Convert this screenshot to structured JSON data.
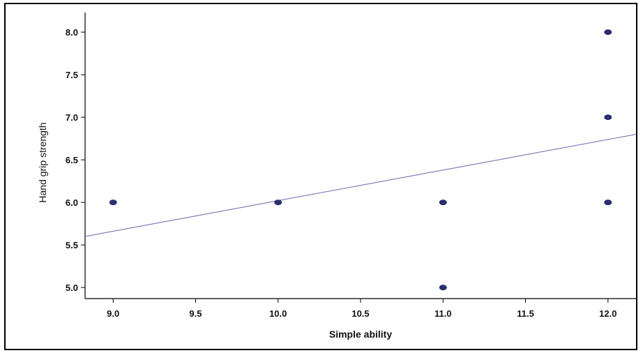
{
  "chart_data": {
    "type": "scatter",
    "title": "",
    "xlabel": "Simple ability",
    "ylabel": "Hand grip strength",
    "xlim": [
      8.83,
      12.17
    ],
    "ylim": [
      4.87,
      8.23
    ],
    "x_ticks": [
      "9.0",
      "9.5",
      "10.0",
      "10.5",
      "11.0",
      "11.5",
      "12.0"
    ],
    "y_ticks": [
      "5.0",
      "5.5",
      "6.0",
      "6.5",
      "7.0",
      "7.5",
      "8.0"
    ],
    "grid": false,
    "legend": "none",
    "series": [
      {
        "points": [
          {
            "x": 9.0,
            "y": 6.0
          },
          {
            "x": 10.0,
            "y": 6.0
          },
          {
            "x": 11.0,
            "y": 6.0
          },
          {
            "x": 11.0,
            "y": 5.0
          },
          {
            "x": 12.0,
            "y": 8.0
          },
          {
            "x": 12.0,
            "y": 7.0
          },
          {
            "x": 12.0,
            "y": 6.0
          }
        ]
      }
    ],
    "fit_line": {
      "from": [
        8.83,
        5.6
      ],
      "to": [
        12.17,
        6.8
      ]
    },
    "colors": {
      "points": "#2a2f6e",
      "fit_line": "#7f7fb8",
      "axis": "#000000"
    }
  }
}
